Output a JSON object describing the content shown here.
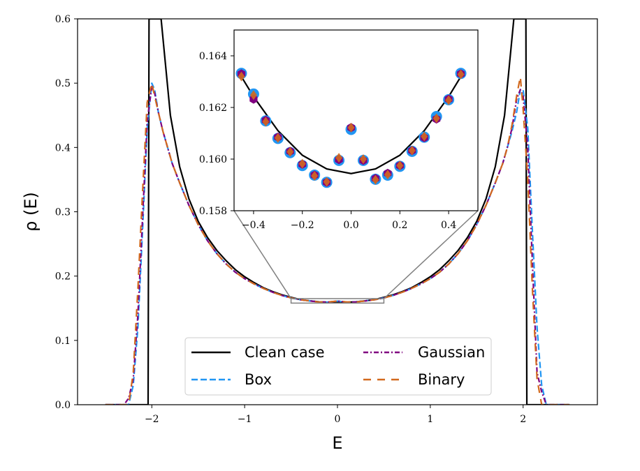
{
  "chart_data": {
    "type": "line",
    "xlabel": "E",
    "ylabel": "ρ (E)",
    "xlim": [
      -2.8,
      2.8
    ],
    "ylim": [
      0.0,
      0.6
    ],
    "xticks": [
      -2,
      -1,
      0,
      1,
      2
    ],
    "xtick_labels": [
      "−2",
      "−1",
      "0",
      "1",
      "2"
    ],
    "yticks": [
      0.0,
      0.1,
      0.2,
      0.3,
      0.4,
      0.5,
      0.6
    ],
    "ytick_labels": [
      "0.0",
      "0.1",
      "0.2",
      "0.3",
      "0.4",
      "0.5",
      "0.6"
    ],
    "legend": {
      "placement": "lower-center",
      "entries": [
        "Clean case",
        "Box",
        "Gaussian",
        "Binary"
      ]
    },
    "series": [
      {
        "name": "Clean case",
        "color": "#000000",
        "style": "solid",
        "x": [
          -2.5,
          -2.3,
          -2.1,
          -2.04,
          -2.03,
          -2.0,
          -1.98,
          -1.95,
          -1.9,
          -1.85,
          -1.8,
          -1.7,
          -1.6,
          -1.5,
          -1.4,
          -1.3,
          -1.2,
          -1.1,
          -1.0,
          -0.9,
          -0.8,
          -0.7,
          -0.6,
          -0.5,
          -0.4,
          -0.3,
          -0.2,
          -0.1,
          0.0,
          0.1,
          0.2,
          0.3,
          0.4,
          0.5,
          0.6,
          0.7,
          0.8,
          0.9,
          1.0,
          1.1,
          1.2,
          1.3,
          1.4,
          1.5,
          1.6,
          1.7,
          1.8,
          1.85,
          1.9,
          1.95,
          1.98,
          2.0,
          2.03,
          2.04,
          2.1,
          2.3,
          2.5
        ],
        "y": [
          0.0,
          0.0,
          0.0,
          0.0,
          0.6,
          0.6,
          0.6,
          0.6,
          0.6,
          0.525,
          0.45,
          0.37,
          0.32,
          0.285,
          0.26,
          0.24,
          0.224,
          0.21,
          0.199,
          0.19,
          0.182,
          0.176,
          0.171,
          0.167,
          0.1635,
          0.1615,
          0.16,
          0.1593,
          0.1592,
          0.1593,
          0.16,
          0.1615,
          0.1635,
          0.167,
          0.171,
          0.176,
          0.182,
          0.19,
          0.199,
          0.21,
          0.224,
          0.24,
          0.26,
          0.285,
          0.32,
          0.37,
          0.45,
          0.525,
          0.6,
          0.6,
          0.6,
          0.6,
          0.6,
          0.0,
          0.0,
          0.0,
          0.0
        ]
      },
      {
        "name": "Box",
        "color": "#2196f3",
        "style": "dashed",
        "x": [
          -2.5,
          -2.3,
          -2.25,
          -2.2,
          -2.15,
          -2.1,
          -2.05,
          -2.0,
          -1.97,
          -1.93,
          -1.88,
          -1.83,
          -1.78,
          -1.7,
          -1.6,
          -1.5,
          -1.4,
          -1.3,
          -1.2,
          -1.1,
          -1.0,
          -0.9,
          -0.8,
          -0.7,
          -0.6,
          -0.5,
          -0.4,
          -0.3,
          -0.2,
          -0.1,
          0.0,
          0.1,
          0.2,
          0.3,
          0.4,
          0.5,
          0.6,
          0.7,
          0.8,
          0.9,
          1.0,
          1.1,
          1.2,
          1.3,
          1.4,
          1.5,
          1.6,
          1.7,
          1.78,
          1.83,
          1.88,
          1.93,
          1.97,
          2.0,
          2.05,
          2.1,
          2.15,
          2.2,
          2.25,
          2.3,
          2.5
        ],
        "y": [
          0.0,
          0.0,
          0.0,
          0.03,
          0.12,
          0.27,
          0.43,
          0.5,
          0.49,
          0.455,
          0.425,
          0.4,
          0.375,
          0.345,
          0.31,
          0.28,
          0.255,
          0.235,
          0.219,
          0.206,
          0.196,
          0.188,
          0.181,
          0.175,
          0.17,
          0.166,
          0.1633,
          0.1615,
          0.16,
          0.1594,
          0.1612,
          0.1594,
          0.16,
          0.1615,
          0.1633,
          0.166,
          0.17,
          0.175,
          0.181,
          0.188,
          0.196,
          0.206,
          0.219,
          0.235,
          0.255,
          0.28,
          0.31,
          0.345,
          0.375,
          0.4,
          0.425,
          0.455,
          0.49,
          0.49,
          0.43,
          0.27,
          0.12,
          0.03,
          0.0,
          0.0,
          0.0
        ]
      },
      {
        "name": "Gaussian",
        "color": "#800080",
        "style": "dashdot",
        "x": [
          -2.5,
          -2.3,
          -2.25,
          -2.2,
          -2.15,
          -2.1,
          -2.05,
          -2.0,
          -1.97,
          -1.93,
          -1.88,
          -1.83,
          -1.78,
          -1.7,
          -1.6,
          -1.5,
          -1.4,
          -1.3,
          -1.2,
          -1.1,
          -1.0,
          -0.9,
          -0.8,
          -0.7,
          -0.6,
          -0.5,
          -0.4,
          -0.3,
          -0.2,
          -0.1,
          0.0,
          0.1,
          0.2,
          0.3,
          0.4,
          0.5,
          0.6,
          0.7,
          0.8,
          0.9,
          1.0,
          1.1,
          1.2,
          1.3,
          1.4,
          1.5,
          1.6,
          1.7,
          1.78,
          1.83,
          1.88,
          1.93,
          1.97,
          2.0,
          2.05,
          2.1,
          2.15,
          2.2,
          2.25,
          2.3,
          2.5
        ],
        "y": [
          0.0,
          0.0,
          0.01,
          0.04,
          0.14,
          0.29,
          0.44,
          0.495,
          0.485,
          0.455,
          0.425,
          0.4,
          0.375,
          0.345,
          0.31,
          0.28,
          0.255,
          0.235,
          0.219,
          0.206,
          0.196,
          0.188,
          0.181,
          0.175,
          0.17,
          0.166,
          0.1632,
          0.1614,
          0.1598,
          0.1596,
          0.1612,
          0.1596,
          0.1598,
          0.1614,
          0.1632,
          0.166,
          0.17,
          0.175,
          0.181,
          0.188,
          0.196,
          0.206,
          0.219,
          0.235,
          0.255,
          0.28,
          0.31,
          0.345,
          0.375,
          0.4,
          0.43,
          0.475,
          0.49,
          0.48,
          0.4,
          0.22,
          0.05,
          0.02,
          0.0,
          0.0,
          0.0
        ]
      },
      {
        "name": "Binary",
        "color": "#d2691e",
        "style": "loosedash",
        "x": [
          -2.5,
          -2.3,
          -2.25,
          -2.2,
          -2.15,
          -2.1,
          -2.05,
          -2.0,
          -1.97,
          -1.93,
          -1.88,
          -1.83,
          -1.78,
          -1.7,
          -1.6,
          -1.5,
          -1.4,
          -1.3,
          -1.2,
          -1.1,
          -1.0,
          -0.9,
          -0.8,
          -0.7,
          -0.6,
          -0.5,
          -0.4,
          -0.3,
          -0.2,
          -0.1,
          0.0,
          0.1,
          0.2,
          0.3,
          0.4,
          0.5,
          0.6,
          0.7,
          0.8,
          0.9,
          1.0,
          1.1,
          1.2,
          1.3,
          1.4,
          1.5,
          1.6,
          1.7,
          1.78,
          1.83,
          1.88,
          1.93,
          1.97,
          2.0,
          2.05,
          2.1,
          2.15,
          2.2,
          2.25,
          2.3,
          2.5
        ],
        "y": [
          0.0,
          0.0,
          0.0,
          0.05,
          0.18,
          0.33,
          0.47,
          0.5,
          0.48,
          0.455,
          0.425,
          0.4,
          0.375,
          0.345,
          0.31,
          0.28,
          0.255,
          0.235,
          0.219,
          0.206,
          0.196,
          0.188,
          0.181,
          0.175,
          0.17,
          0.166,
          0.1632,
          0.1614,
          0.1598,
          0.1598,
          0.1612,
          0.1598,
          0.1598,
          0.1614,
          0.1632,
          0.166,
          0.17,
          0.175,
          0.181,
          0.188,
          0.196,
          0.206,
          0.219,
          0.235,
          0.255,
          0.28,
          0.31,
          0.345,
          0.375,
          0.4,
          0.435,
          0.48,
          0.51,
          0.46,
          0.35,
          0.18,
          0.04,
          0.0,
          0.0,
          0.0,
          0.0
        ]
      }
    ],
    "inset": {
      "xlim": [
        -0.48,
        0.52
      ],
      "ylim": [
        0.158,
        0.165
      ],
      "xticks": [
        -0.4,
        -0.2,
        0.0,
        0.2,
        0.4
      ],
      "xtick_labels": [
        "−0.4",
        "−0.2",
        "0.0",
        "0.2",
        "0.4"
      ],
      "yticks": [
        0.158,
        0.16,
        0.162,
        0.164
      ],
      "ytick_labels": [
        "0.158",
        "0.160",
        "0.162",
        "0.164"
      ],
      "zoom_region": {
        "x": [
          -0.5,
          0.5
        ],
        "y": [
          0.158,
          0.165
        ]
      },
      "curve": {
        "name": "Clean case",
        "x": [
          -0.46,
          -0.4,
          -0.3,
          -0.2,
          -0.1,
          0.0,
          0.1,
          0.2,
          0.3,
          0.4,
          0.46
        ],
        "y": [
          0.16335,
          0.16242,
          0.1611,
          0.16015,
          0.15962,
          0.15944,
          0.15962,
          0.16015,
          0.1611,
          0.16242,
          0.16335
        ]
      },
      "points": {
        "x": [
          -0.45,
          -0.4,
          -0.35,
          -0.3,
          -0.25,
          -0.2,
          -0.15,
          -0.1,
          -0.05,
          0.0,
          0.05,
          0.1,
          0.15,
          0.2,
          0.25,
          0.3,
          0.35,
          0.4,
          0.45
        ],
        "box": [
          0.16332,
          0.16252,
          0.16148,
          0.1608,
          0.16025,
          0.15975,
          0.15938,
          0.1591,
          0.15995,
          0.16115,
          0.15995,
          0.15922,
          0.15938,
          0.15972,
          0.1603,
          0.16085,
          0.16165,
          0.1623,
          0.16332
        ],
        "gaussian": [
          0.1633,
          0.16232,
          0.1615,
          0.16085,
          0.1603,
          0.1598,
          0.15938,
          0.1591,
          0.15998,
          0.16122,
          0.15995,
          0.15925,
          0.15945,
          0.15975,
          0.16033,
          0.16083,
          0.16155,
          0.16232,
          0.1633
        ],
        "binary": [
          0.1632,
          0.16248,
          0.16145,
          0.16082,
          0.16028,
          0.15982,
          0.15935,
          0.15912,
          0.16005,
          0.16122,
          0.16,
          0.1592,
          0.1594,
          0.15975,
          0.16033,
          0.16088,
          0.16158,
          0.16228,
          0.16328
        ]
      },
      "point_colors": {
        "box": "#2196f3",
        "gaussian": "#800080",
        "binary": "#d2691e"
      }
    }
  }
}
